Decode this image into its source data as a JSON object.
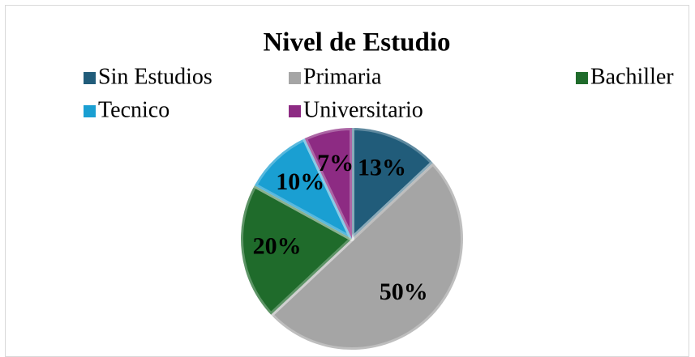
{
  "chart_data": {
    "type": "pie",
    "title": "Nivel de Estudio",
    "categories": [
      "Sin Estudios",
      "Primaria",
      "Bachiller",
      "Tecnico",
      "Universitario"
    ],
    "values": [
      13,
      50,
      20,
      10,
      7
    ],
    "value_labels": [
      "13%",
      "50%",
      "20%",
      "10%",
      "7%"
    ],
    "colors": [
      "#215c7a",
      "#a5a5a5",
      "#1f6b2b",
      "#1a9fd2",
      "#8d2b83"
    ],
    "legend": "top"
  }
}
